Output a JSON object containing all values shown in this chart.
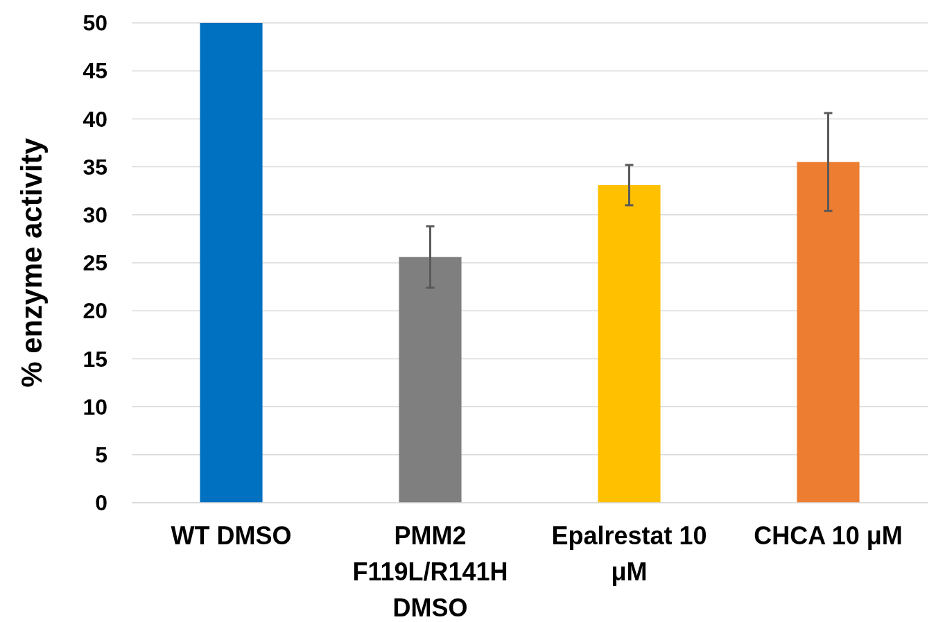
{
  "chart_data": {
    "type": "bar",
    "ylabel": "% enzyme activity",
    "categories": [
      "WT DMSO",
      "PMM2 F119L/R141H DMSO",
      "Epalrestat 10 μM",
      "CHCA 10 μM"
    ],
    "values": [
      50,
      25.6,
      33.1,
      35.5
    ],
    "colors": [
      "#0070c0",
      "#7f7f7f",
      "#ffc000",
      "#ed7d31"
    ],
    "errors": [
      null,
      3.2,
      2.1,
      5.1
    ],
    "ylim": [
      0,
      50
    ],
    "yticks": [
      0,
      5,
      10,
      15,
      20,
      25,
      30,
      35,
      40,
      45,
      50
    ],
    "grid": "y"
  }
}
